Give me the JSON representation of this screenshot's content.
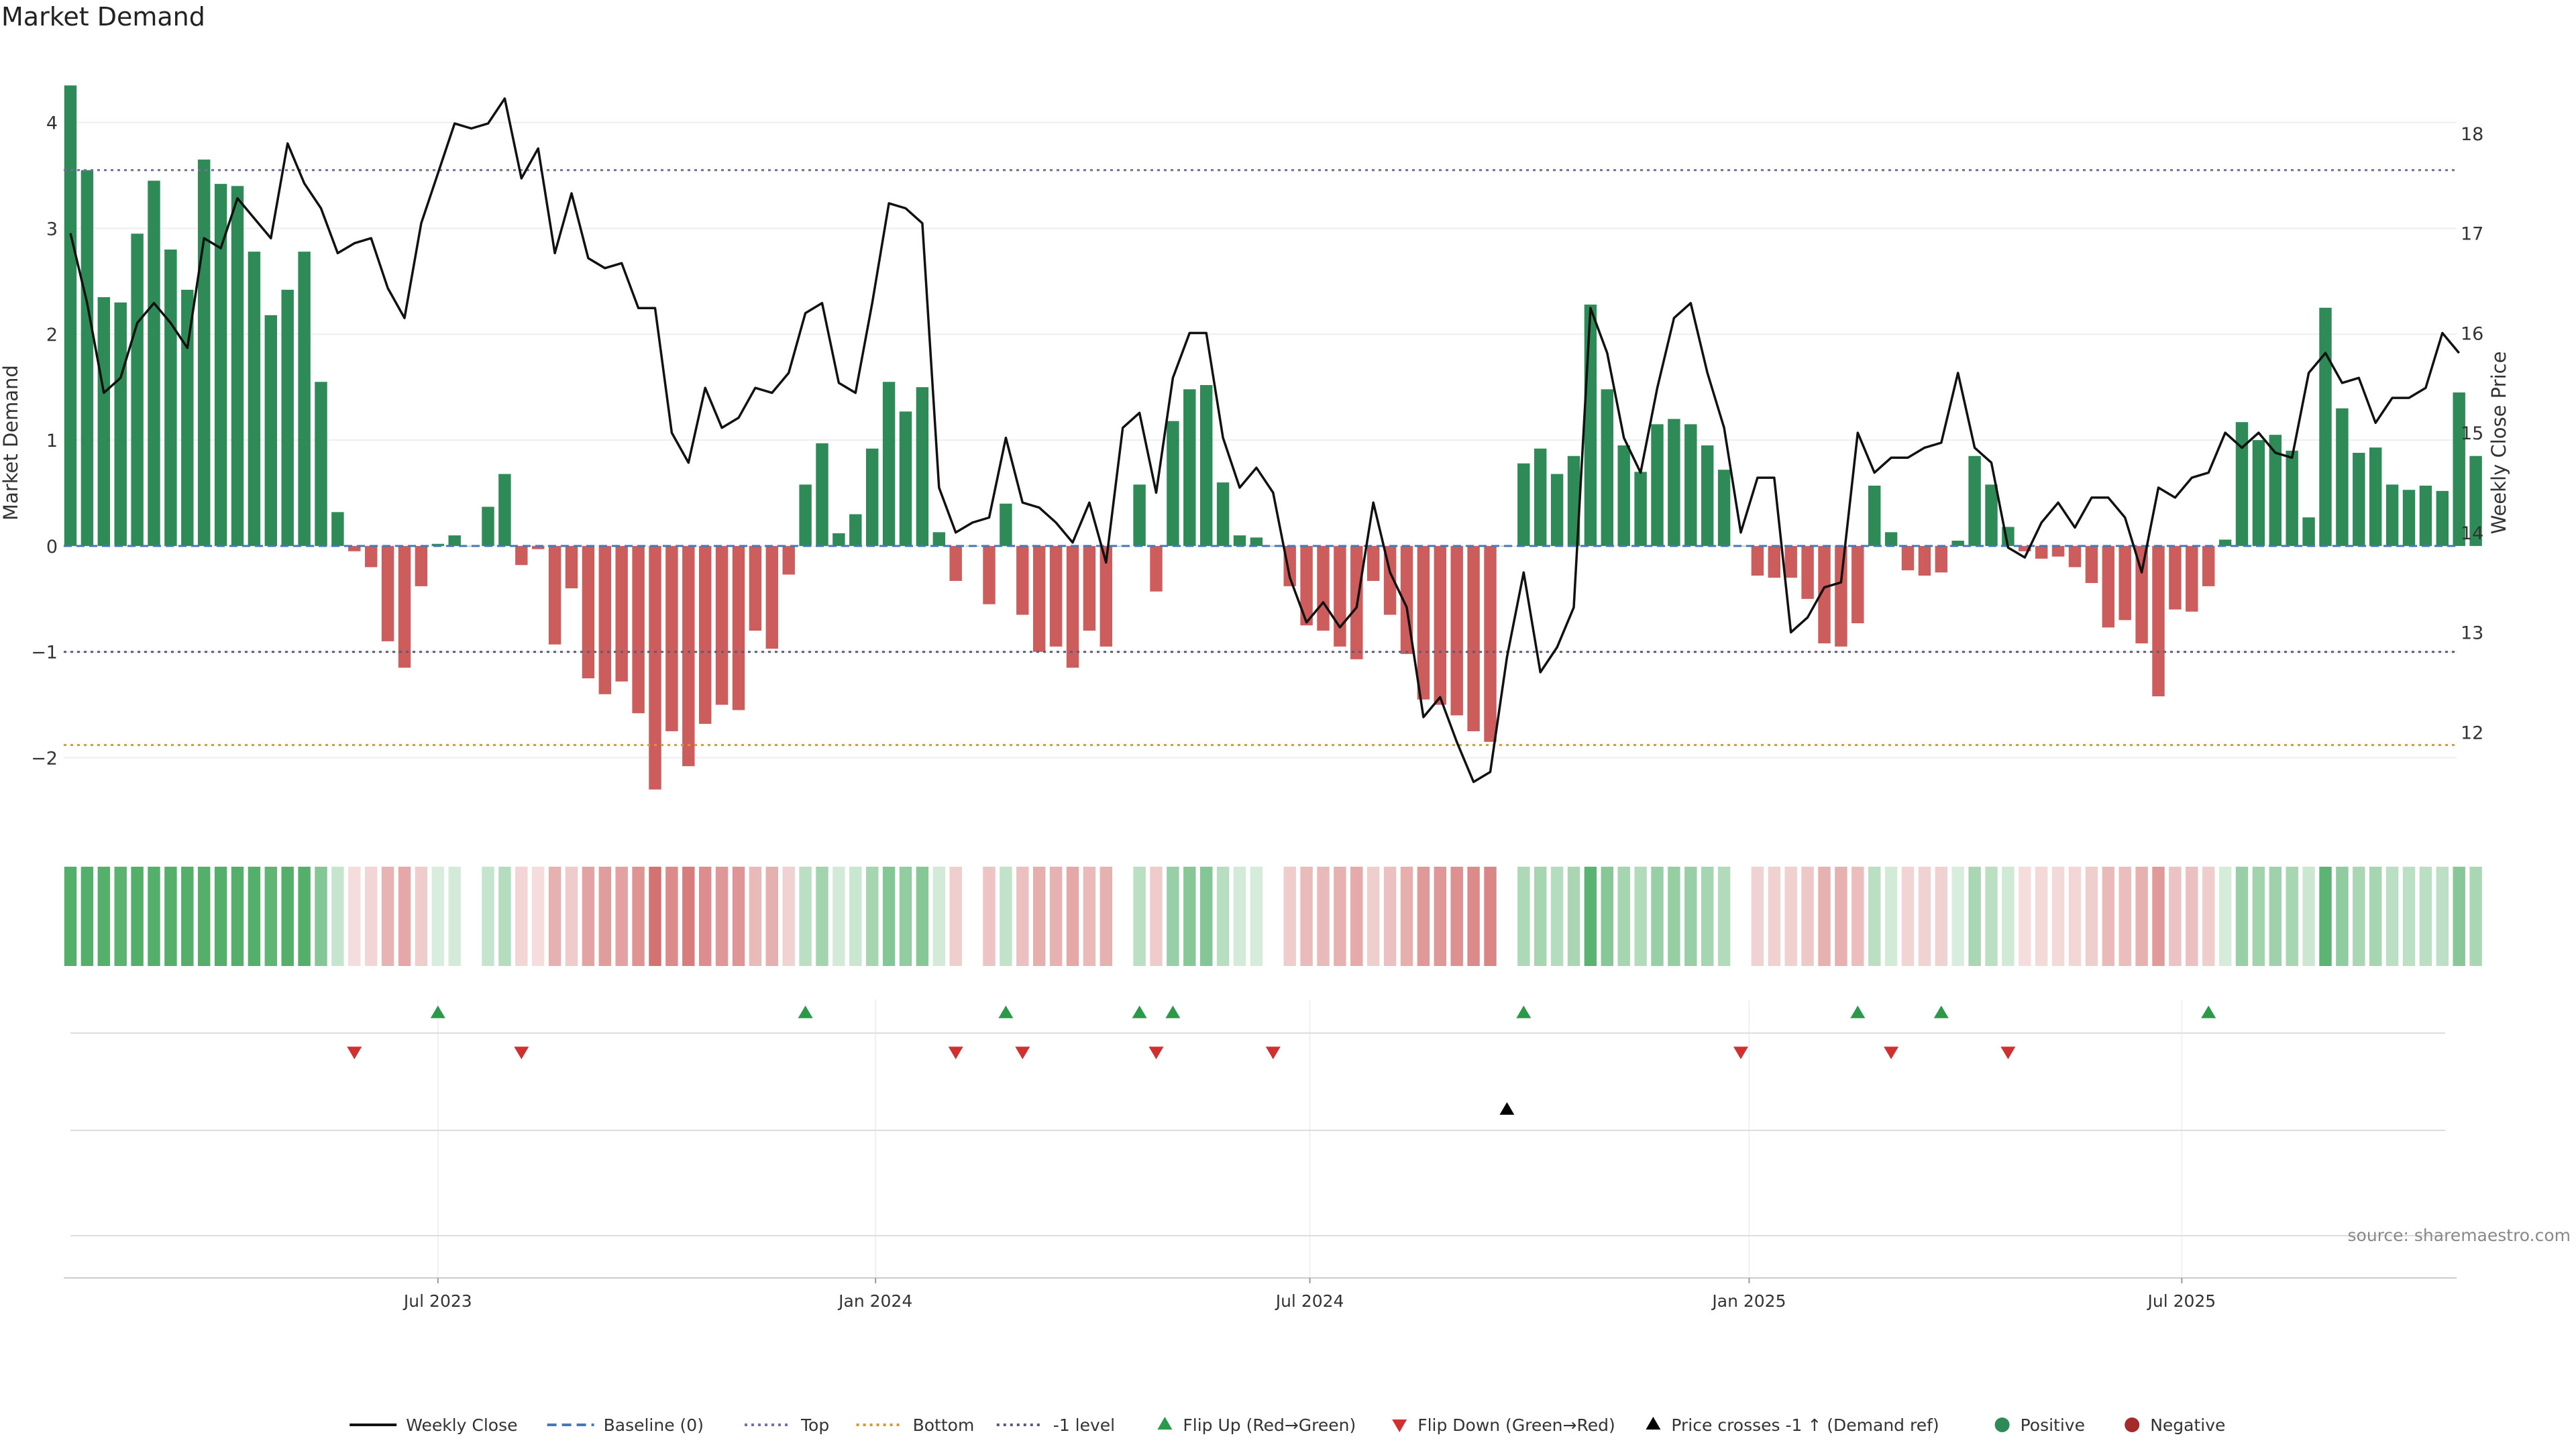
{
  "chart_data": {
    "type": "bar",
    "title": "Market Demand",
    "ylabel_left": "Market Demand",
    "ylabel_right": "Weekly Close Price",
    "source": "source: sharemaestro.com",
    "ylim_left": [
      -2.7,
      4.65
    ],
    "yticks_left": [
      {
        "v": 4,
        "label": "4"
      },
      {
        "v": 3,
        "label": "3"
      },
      {
        "v": 2,
        "label": "2"
      },
      {
        "v": 1,
        "label": "1"
      },
      {
        "v": 0,
        "label": "0"
      },
      {
        "v": -1,
        "label": "−1"
      },
      {
        "v": -2,
        "label": "−2"
      }
    ],
    "ylim_right": [
      11.0,
      18.8
    ],
    "yticks_right": [
      {
        "v": 18,
        "label": "18"
      },
      {
        "v": 17,
        "label": "17"
      },
      {
        "v": 16,
        "label": "16"
      },
      {
        "v": 15,
        "label": "15"
      },
      {
        "v": 14,
        "label": "14"
      },
      {
        "v": 13,
        "label": "13"
      },
      {
        "v": 12,
        "label": "12"
      }
    ],
    "reference_lines": {
      "top": 3.55,
      "bottom": -1.88,
      "minus_one": -1.0,
      "baseline": 0
    },
    "x_start_label": "2023-01-30",
    "x_ticks": [
      {
        "index": 22,
        "label": "Jul 2023"
      },
      {
        "index": 48.2,
        "label": "Jan 2024"
      },
      {
        "index": 74.2,
        "label": "Jul 2024"
      },
      {
        "index": 100.5,
        "label": "Jan 2025"
      },
      {
        "index": 126.4,
        "label": "Jul 2025"
      }
    ],
    "demand": [
      4.35,
      3.55,
      2.35,
      2.3,
      2.95,
      3.45,
      2.8,
      2.42,
      3.65,
      3.42,
      3.4,
      2.78,
      2.18,
      2.42,
      2.78,
      1.55,
      0.32,
      -0.05,
      -0.2,
      -0.9,
      -1.15,
      -0.38,
      0.02,
      0.1,
      0.0,
      0.37,
      0.68,
      -0.18,
      -0.03,
      -0.93,
      -0.4,
      -1.25,
      -1.4,
      -1.28,
      -1.58,
      -2.3,
      -1.75,
      -2.08,
      -1.68,
      -1.5,
      -1.55,
      -0.8,
      -0.97,
      -0.27,
      0.58,
      0.97,
      0.12,
      0.3,
      0.92,
      1.55,
      1.27,
      1.5,
      0.13,
      -0.33,
      0.0,
      -0.55,
      0.4,
      -0.65,
      -1.0,
      -0.95,
      -1.15,
      -0.8,
      -0.95,
      0.0,
      0.58,
      -0.43,
      1.18,
      1.48,
      1.52,
      0.6,
      0.1,
      0.08,
      0.0,
      -0.38,
      -0.75,
      -0.8,
      -0.95,
      -1.07,
      -0.33,
      -0.65,
      -1.02,
      -1.45,
      -1.5,
      -1.6,
      -1.75,
      -1.85,
      0.0,
      0.78,
      0.92,
      0.68,
      0.85,
      2.28,
      1.48,
      0.95,
      0.7,
      1.15,
      1.2,
      1.15,
      0.95,
      0.72,
      0.0,
      -0.28,
      -0.3,
      -0.3,
      -0.5,
      -0.92,
      -0.95,
      -0.73,
      0.57,
      0.13,
      -0.23,
      -0.28,
      -0.25,
      0.05,
      0.85,
      0.58,
      0.18,
      -0.05,
      -0.12,
      -0.1,
      -0.2,
      -0.35,
      -0.77,
      -0.7,
      -0.92,
      -1.42,
      -0.6,
      -0.62,
      -0.38,
      0.06,
      1.17,
      1.0,
      1.05,
      0.9,
      0.27,
      2.25,
      1.3,
      0.88,
      0.93,
      0.58,
      0.53,
      0.57,
      0.52,
      1.45,
      0.85
    ],
    "weekly_close": [
      17.0,
      16.3,
      15.4,
      15.55,
      16.1,
      16.3,
      16.1,
      15.85,
      16.95,
      16.85,
      17.35,
      17.15,
      16.95,
      17.9,
      17.5,
      17.25,
      16.8,
      16.9,
      16.95,
      16.45,
      16.15,
      17.1,
      17.6,
      18.1,
      18.05,
      18.1,
      18.35,
      17.55,
      17.85,
      16.8,
      17.4,
      16.75,
      16.65,
      16.7,
      16.25,
      16.25,
      15.0,
      14.7,
      15.45,
      15.05,
      15.15,
      15.45,
      15.4,
      15.6,
      16.2,
      16.3,
      15.5,
      15.4,
      16.3,
      17.3,
      17.25,
      17.1,
      14.45,
      14.0,
      14.1,
      14.15,
      14.95,
      14.3,
      14.25,
      14.1,
      13.9,
      14.3,
      13.7,
      15.05,
      15.2,
      14.4,
      15.55,
      16.0,
      16.0,
      14.95,
      14.45,
      14.65,
      14.4,
      13.55,
      13.1,
      13.3,
      13.05,
      13.25,
      14.3,
      13.6,
      13.25,
      12.15,
      12.35,
      11.9,
      11.5,
      11.6,
      12.75,
      13.6,
      12.6,
      12.85,
      13.25,
      16.25,
      15.8,
      14.95,
      14.6,
      15.45,
      16.15,
      16.3,
      15.6,
      15.05,
      14.0,
      14.55,
      14.55,
      13.0,
      13.15,
      13.45,
      13.5,
      15.0,
      14.6,
      14.75,
      14.75,
      14.85,
      14.9,
      15.6,
      14.85,
      14.7,
      13.85,
      13.75,
      14.1,
      14.3,
      14.05,
      14.35,
      14.35,
      14.15,
      13.6,
      14.45,
      14.35,
      14.55,
      14.6,
      15.0,
      14.85,
      15.0,
      14.8,
      14.75,
      15.6,
      15.8,
      15.5,
      15.55,
      15.1,
      15.35,
      15.35,
      15.45,
      16.0,
      15.8
    ],
    "flip_up_indices": [
      22,
      44,
      56,
      64,
      66,
      87,
      107,
      112,
      128
    ],
    "flip_down_indices": [
      17,
      27,
      53,
      57,
      65,
      72,
      100,
      109,
      116
    ],
    "price_cross_indices": [
      86
    ],
    "legend": [
      {
        "key": "weekly_close",
        "label": "Weekly Close",
        "color": "#111111"
      },
      {
        "key": "baseline",
        "label": "Baseline (0)",
        "color": "#4477bb"
      },
      {
        "key": "top",
        "label": "Top",
        "color": "#7a6ca8"
      },
      {
        "key": "bottom",
        "label": "Bottom",
        "color": "#d99a2b"
      },
      {
        "key": "minus_one",
        "label": "-1 level",
        "color": "#5a5a78"
      },
      {
        "key": "flip_up",
        "label": "Flip Up (Red→Green)",
        "color": "#2a9a4a"
      },
      {
        "key": "flip_down",
        "label": "Flip Down (Green→Red)",
        "color": "#d03030"
      },
      {
        "key": "price_cross",
        "label": "Price crosses -1 ↑ (Demand ref)",
        "color": "#000000"
      },
      {
        "key": "positive",
        "label": "Positive",
        "color": "#2e8b57"
      },
      {
        "key": "negative",
        "label": "Negative",
        "color": "#a52a2a"
      }
    ]
  }
}
